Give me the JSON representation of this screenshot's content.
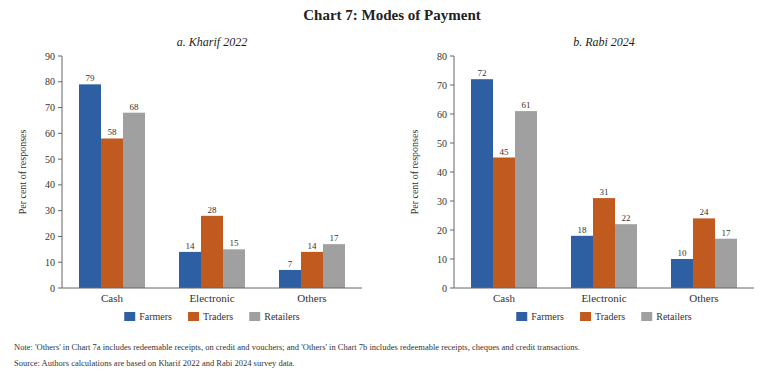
{
  "title": "Chart 7: Modes of Payment",
  "note": "Note: 'Others' in Chart 7a includes redeemable receipts, on credit and vouchers; and 'Others' in Chart 7b includes redeemable receipts, cheques and credit transactions.",
  "source": "Source: Authors calculations are based on Kharif 2022 and Rabi 2024 survey data.",
  "chart_data": [
    {
      "type": "bar",
      "subtitle": "a. Kharif 2022",
      "categories": [
        "Cash",
        "Electronic",
        "Others"
      ],
      "series": [
        {
          "name": "Farmers",
          "color": "#2E5FA3",
          "values": [
            79,
            14,
            7
          ]
        },
        {
          "name": "Traders",
          "color": "#C05A1F",
          "values": [
            58,
            28,
            14
          ]
        },
        {
          "name": "Retailers",
          "color": "#A0A0A0",
          "values": [
            68,
            15,
            17
          ]
        }
      ],
      "ylabel": "Per cent of responses",
      "ylim": [
        0,
        90
      ],
      "yticks": [
        0,
        10,
        20,
        30,
        40,
        50,
        60,
        70,
        80,
        90
      ],
      "grid": false,
      "legend": "bottom",
      "data_labels": true
    },
    {
      "type": "bar",
      "subtitle": "b. Rabi 2024",
      "categories": [
        "Cash",
        "Electronic",
        "Others"
      ],
      "series": [
        {
          "name": "Farmers",
          "color": "#2E5FA3",
          "values": [
            72,
            18,
            10
          ]
        },
        {
          "name": "Traders",
          "color": "#C05A1F",
          "values": [
            45,
            31,
            24
          ]
        },
        {
          "name": "Retailers",
          "color": "#A0A0A0",
          "values": [
            61,
            22,
            17
          ]
        }
      ],
      "ylabel": "Per cent of responses",
      "ylim": [
        0,
        80
      ],
      "yticks": [
        0,
        10,
        20,
        30,
        40,
        50,
        60,
        70,
        80
      ],
      "grid": false,
      "legend": "bottom",
      "data_labels": true
    }
  ]
}
